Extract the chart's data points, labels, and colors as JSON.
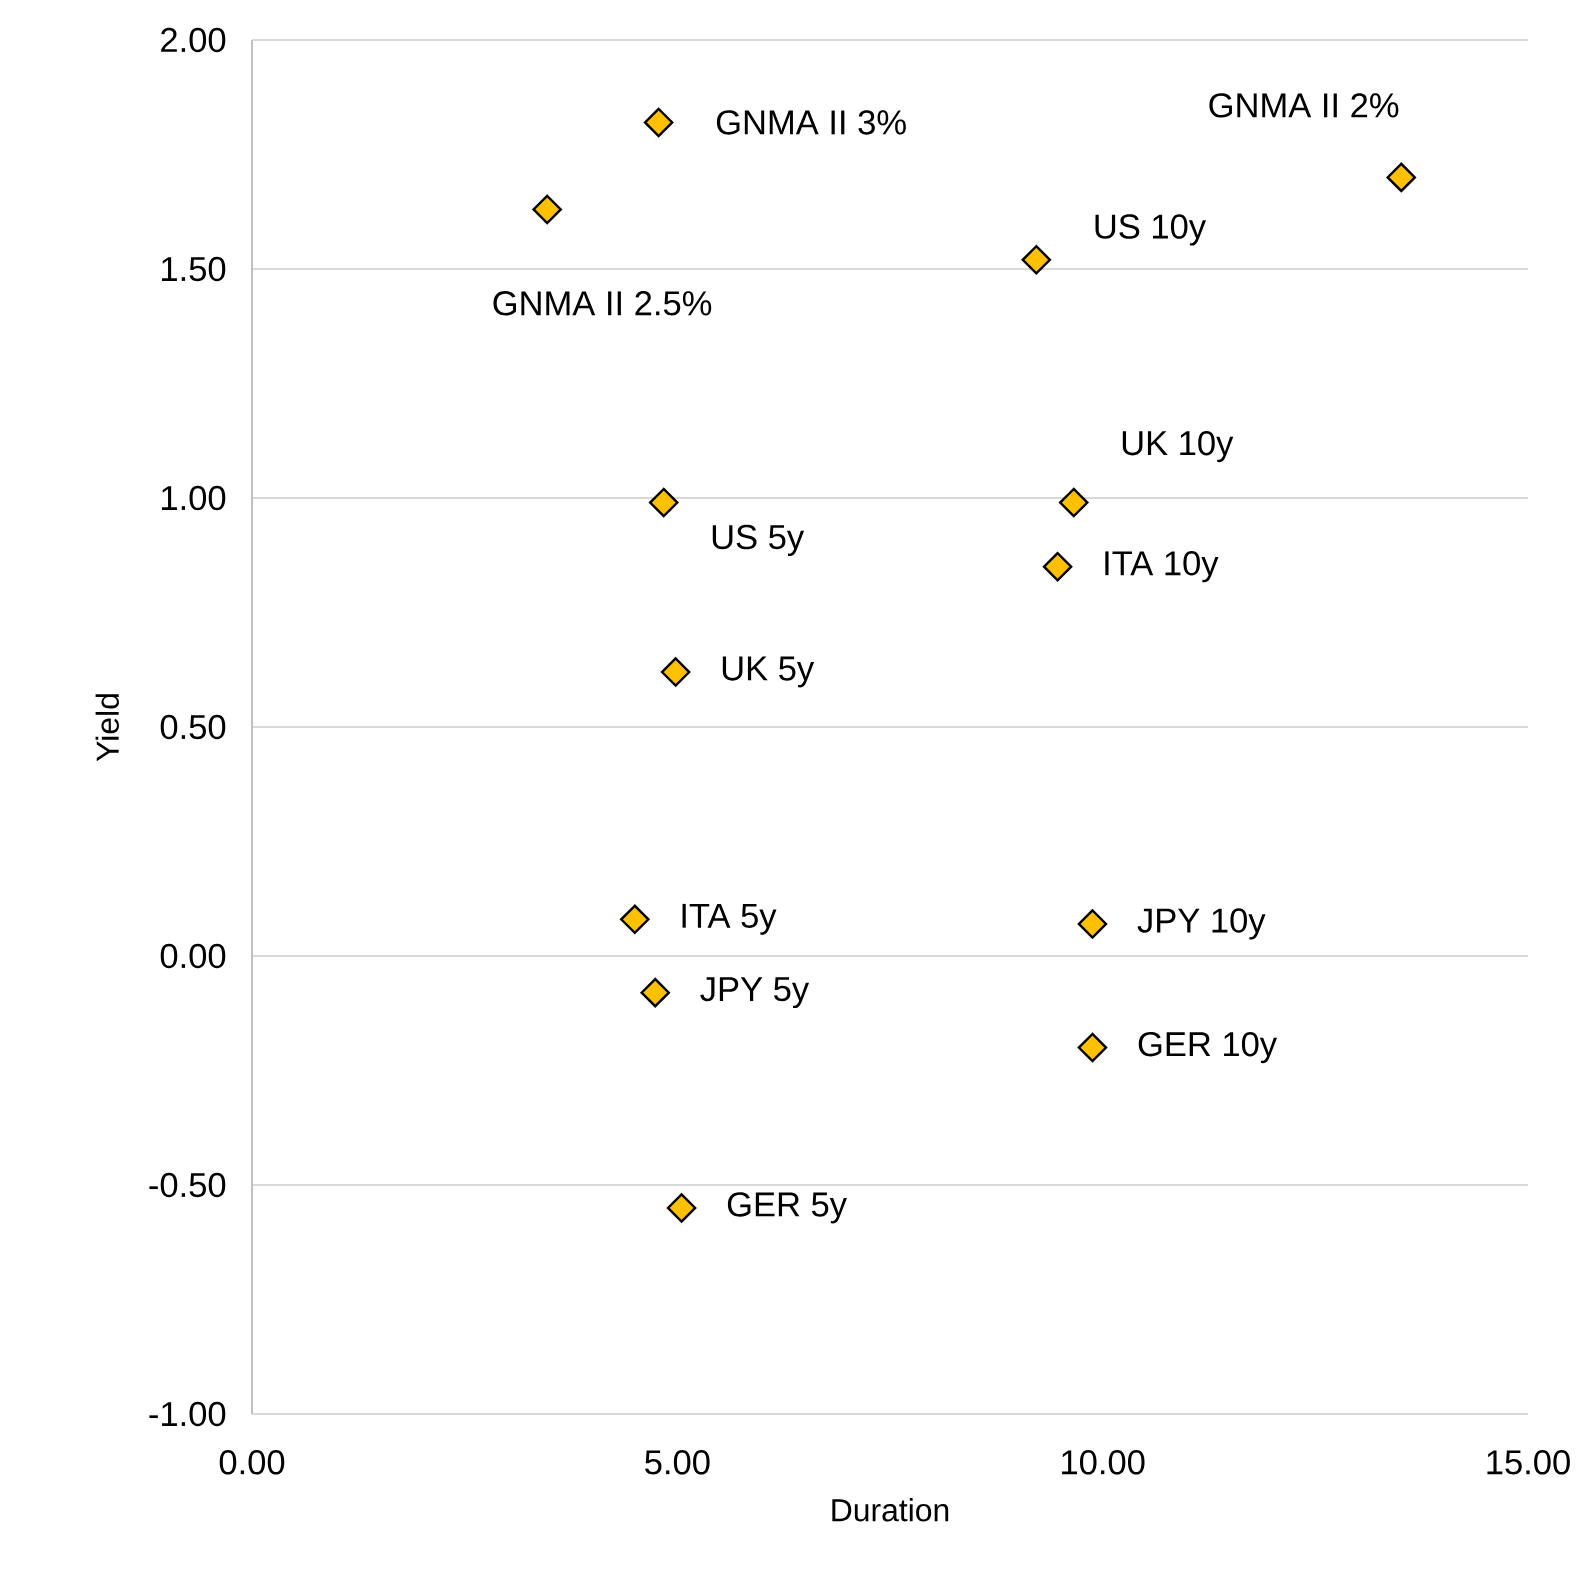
{
  "chart_data": {
    "type": "scatter",
    "xlabel": "Duration",
    "ylabel": "Yield",
    "series": [
      {
        "color": "#ffc000",
        "x": [
          4.78,
          3.47,
          13.51,
          9.22,
          4.84,
          9.66,
          9.47,
          4.98,
          4.5,
          9.88,
          4.74,
          9.88,
          5.05
        ],
        "values": [
          1.82,
          1.63,
          1.7,
          1.52,
          0.99,
          0.99,
          0.85,
          0.62,
          0.08,
          0.07,
          -0.08,
          -0.2,
          -0.55
        ]
      }
    ],
    "annotations": [
      {
        "text": "GNMA II 3%",
        "x": 4.78,
        "y": 1.82
      },
      {
        "text": "GNMA II 2.5%",
        "x": 3.47,
        "y": 1.63
      },
      {
        "text": "GNMA II 2%",
        "x": 13.51,
        "y": 1.7
      },
      {
        "text": "US 10y",
        "x": 9.22,
        "y": 1.52
      },
      {
        "text": "US 5y",
        "x": 4.84,
        "y": 0.99
      },
      {
        "text": "UK 10y",
        "x": 9.66,
        "y": 0.99
      },
      {
        "text": "ITA 10y",
        "x": 9.47,
        "y": 0.85
      },
      {
        "text": "UK 5y",
        "x": 4.98,
        "y": 0.62
      },
      {
        "text": "ITA 5y",
        "x": 4.5,
        "y": 0.08
      },
      {
        "text": "JPY 10y",
        "x": 9.88,
        "y": 0.07
      },
      {
        "text": "JPY 5y",
        "x": 4.74,
        "y": -0.08
      },
      {
        "text": "GER 10y",
        "x": 9.88,
        "y": -0.2
      },
      {
        "text": "GER 5y",
        "x": 5.05,
        "y": -0.55
      }
    ],
    "xlim": [
      0,
      15
    ],
    "ylim": [
      -1,
      2
    ],
    "xticks": [
      {
        "value": 0,
        "label": "0.00"
      },
      {
        "value": 5,
        "label": "5.00"
      },
      {
        "value": 10,
        "label": "10.00"
      },
      {
        "value": 15,
        "label": "15.00"
      }
    ],
    "yticks": [
      {
        "value": -1,
        "label": "-1.00"
      },
      {
        "value": -0.5,
        "label": "-0.50"
      },
      {
        "value": 0,
        "label": "0.00"
      },
      {
        "value": 0.5,
        "label": "0.50"
      },
      {
        "value": 1,
        "label": "1.00"
      },
      {
        "value": 1.5,
        "label": "1.50"
      },
      {
        "value": 2,
        "label": "2.00"
      }
    ],
    "grid": "y",
    "marker": "diamond"
  }
}
